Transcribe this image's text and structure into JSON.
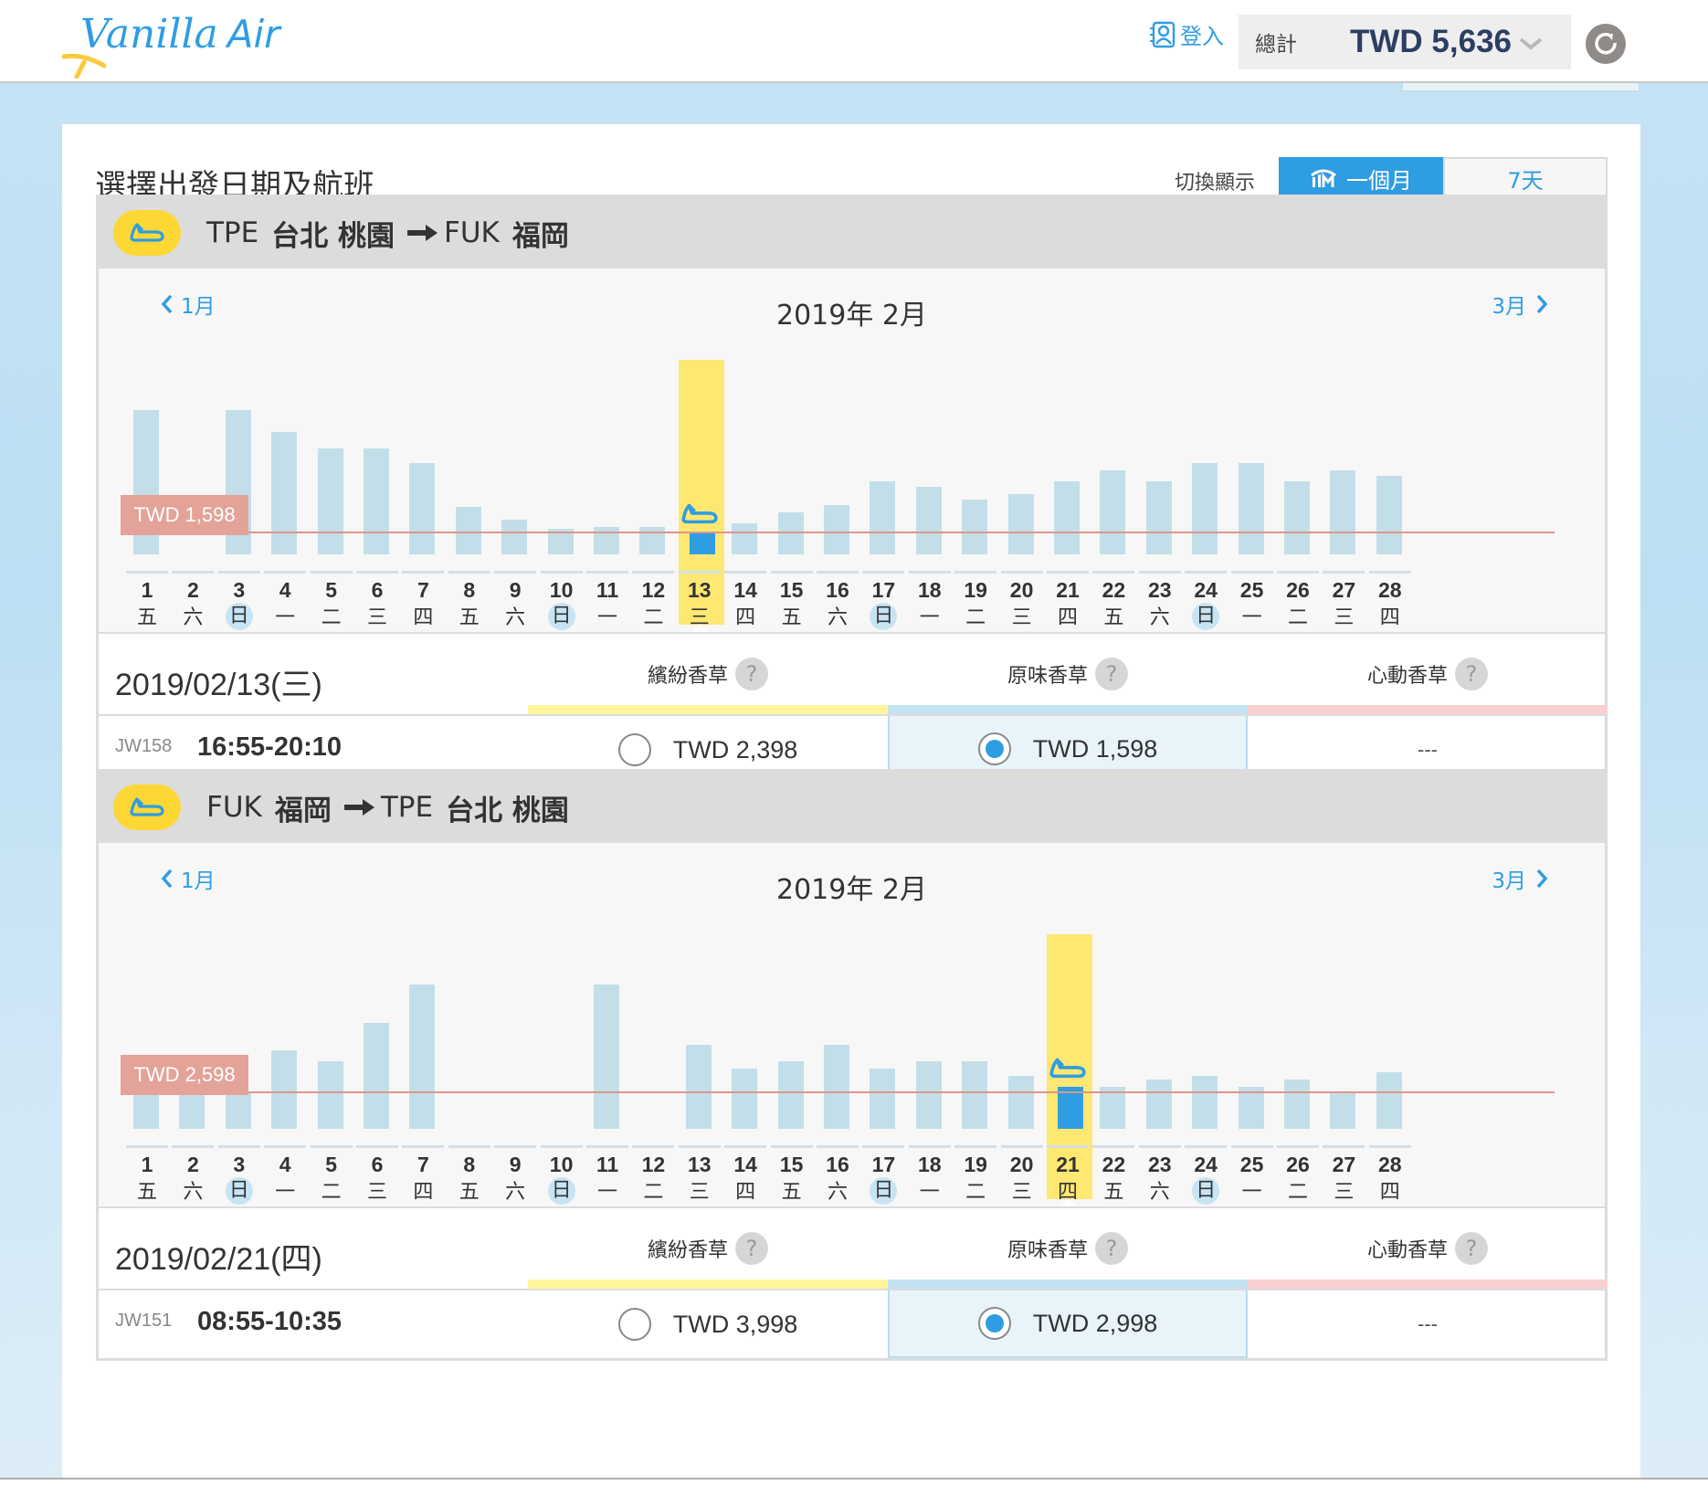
{
  "header": {
    "logo": {
      "text_main": "Vanilla",
      "text_air": "Air"
    },
    "login_label": "登入",
    "total_label": "總計",
    "total_value": "TWD 5,636"
  },
  "page": {
    "title": "選擇出發日期及航班",
    "toggle_label": "切換顯示",
    "toggle_month": "一個月",
    "toggle_week": "7天"
  },
  "colors": {
    "accent": "#2f9de2",
    "bar": "#c2dfe9",
    "selected_bar": "#2f9de2",
    "highlight": "#ffe872",
    "lowest_line": "#e0958c",
    "badge": "#fdd835",
    "fare_class_colors": [
      "#fff59d",
      "#c5e2f1",
      "#f8d0cf"
    ]
  },
  "routes": [
    {
      "from_code": "TPE",
      "from_city": "台北 桃園",
      "to_code": "FUK",
      "to_city": "福岡",
      "prev_month": "1月",
      "next_month": "3月",
      "month_title": "2019年 2月",
      "lowest_tag": "TWD 1,598",
      "selected_day": 13,
      "selected_date": "2019/02/13(三)",
      "fare_classes": [
        "繽紛香草",
        "原味香草",
        "心動香草"
      ],
      "flights": [
        {
          "flight_no": "JW158",
          "time": "16:55-20:10",
          "fares": [
            "TWD 2,398",
            "TWD 1,598",
            "---"
          ],
          "selected_fare": 1
        }
      ]
    },
    {
      "from_code": "FUK",
      "from_city": "福岡",
      "to_code": "TPE",
      "to_city": "台北 桃園",
      "prev_month": "1月",
      "next_month": "3月",
      "month_title": "2019年 2月",
      "lowest_tag": "TWD 2,598",
      "selected_day": 21,
      "selected_date": "2019/02/21(四)",
      "fare_classes": [
        "繽紛香草",
        "原味香草",
        "心動香草"
      ],
      "flights": [
        {
          "flight_no": "JW151",
          "time": "08:55-10:35",
          "fares": [
            "TWD 3,998",
            "TWD 2,998",
            "---"
          ],
          "selected_fare": 1
        }
      ]
    }
  ],
  "chart_data": [
    {
      "type": "bar",
      "title": "TPE 台北 桃園 → FUK 福岡 · 2019年 2月",
      "categories": [
        "1",
        "2",
        "3",
        "4",
        "5",
        "6",
        "7",
        "8",
        "9",
        "10",
        "11",
        "12",
        "13",
        "14",
        "15",
        "16",
        "17",
        "18",
        "19",
        "20",
        "21",
        "22",
        "23",
        "24",
        "25",
        "26",
        "27",
        "28"
      ],
      "weekdays": [
        "五",
        "六",
        "日",
        "一",
        "二",
        "三",
        "四",
        "五",
        "六",
        "日",
        "一",
        "二",
        "三",
        "四",
        "五",
        "六",
        "日",
        "一",
        "二",
        "三",
        "四",
        "五",
        "六",
        "日",
        "一",
        "二",
        "三",
        "四"
      ],
      "values": [
        158,
        0,
        158,
        134,
        116,
        116,
        100,
        52,
        38,
        28,
        30,
        30,
        24,
        34,
        46,
        54,
        80,
        74,
        60,
        66,
        80,
        92,
        80,
        100,
        100,
        80,
        92,
        86
      ],
      "unavailable": [
        2
      ],
      "selected": 13,
      "reference_line": {
        "label": "TWD 1,598",
        "value": 25
      },
      "xlabel": "",
      "ylabel": "relative fare (px)"
    },
    {
      "type": "bar",
      "title": "FUK 福岡 → TPE 台北 桃園 · 2019年 2月",
      "categories": [
        "1",
        "2",
        "3",
        "4",
        "5",
        "6",
        "7",
        "8",
        "9",
        "10",
        "11",
        "12",
        "13",
        "14",
        "15",
        "16",
        "17",
        "18",
        "19",
        "20",
        "21",
        "22",
        "23",
        "24",
        "25",
        "26",
        "27",
        "28"
      ],
      "weekdays": [
        "五",
        "六",
        "日",
        "一",
        "二",
        "三",
        "四",
        "五",
        "六",
        "日",
        "一",
        "二",
        "三",
        "四",
        "五",
        "六",
        "日",
        "一",
        "二",
        "三",
        "四",
        "五",
        "六",
        "日",
        "一",
        "二",
        "三",
        "四"
      ],
      "values": [
        40,
        40,
        40,
        86,
        74,
        116,
        158,
        0,
        0,
        0,
        158,
        0,
        92,
        66,
        74,
        92,
        66,
        74,
        74,
        58,
        46,
        46,
        54,
        58,
        46,
        54,
        40,
        62
      ],
      "unavailable": [
        8,
        9,
        10,
        12
      ],
      "selected": 21,
      "reference_line": {
        "label": "TWD 2,598",
        "value": 41
      },
      "xlabel": "",
      "ylabel": "relative fare (px)"
    }
  ]
}
